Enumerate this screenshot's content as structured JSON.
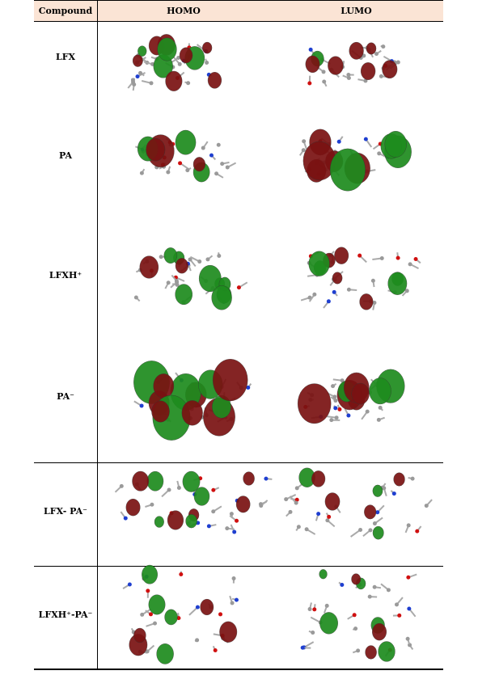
{
  "table": {
    "header": [
      "Compound",
      "HOMO",
      "LUMO"
    ],
    "rows": [
      "LFX",
      "PA",
      "LFXH⁺",
      "PA⁻",
      "LFX- PA⁻",
      "LFXH⁺-PA⁻"
    ]
  }
}
